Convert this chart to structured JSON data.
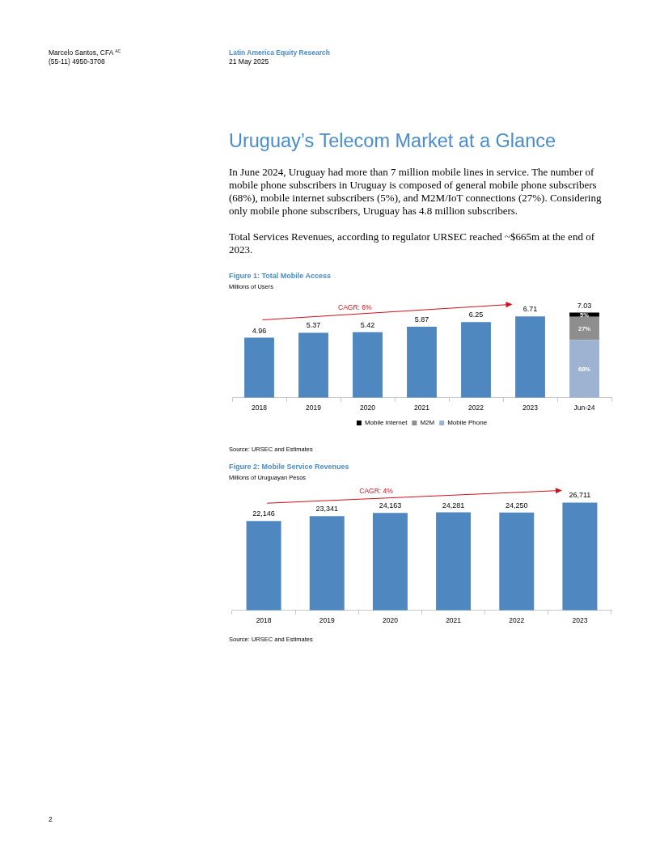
{
  "chart_data": [
    {
      "type": "bar",
      "title": "Figure 1: Total Mobile Access",
      "subtitle": "Millions of Users",
      "categories": [
        "2018",
        "2019",
        "2020",
        "2021",
        "2022",
        "2023",
        "Jun-24"
      ],
      "stacked": true,
      "series": [
        {
          "color": "#4f88c0",
          "values": [
            4.96,
            5.37,
            5.42,
            5.87,
            6.25,
            6.71,
            null
          ],
          "value_labels": [
            "4.96",
            "5.37",
            "5.42",
            "5.87",
            "6.25",
            "6.71",
            null
          ]
        },
        {
          "name": "Mobile Phone",
          "color": "#9db3d1",
          "values": [
            null,
            null,
            null,
            null,
            null,
            null,
            4.78
          ]
        },
        {
          "name": "M2M",
          "color": "#8e8e8e",
          "values": [
            null,
            null,
            null,
            null,
            null,
            null,
            1.9
          ]
        },
        {
          "name": "Mobile internet",
          "color": "#000000",
          "values": [
            null,
            null,
            null,
            null,
            null,
            null,
            0.35
          ]
        }
      ],
      "totals": [
        null,
        null,
        null,
        null,
        null,
        null,
        "7.03"
      ],
      "tick_labels": "x",
      "legend": "bottom",
      "annotations": [
        "CAGR: 6%",
        "Source: URSEC and Estimates",
        "68%",
        "27%",
        "5%",
        "Marcelo Santos, CFA $^{AC}$",
        "(55-11) 4950-3708",
        "Latin America Equity Research",
        "21 May 2025",
        "Uruguay’s Telecom Market at a Glance",
        "In June 2024, Uruguay had more than 7 million mobile lines in service. The number of mobile phone subscribers in Uruguay is composed of general mobile phone subscribers (68%), mobile internet subscribers (5%), and M2M/IoT connections (27%). Considering only mobile phone subscribers, Uruguay has 4.8 million subscribers.",
        "Total Services Revenues, according to regulator URSEC reached ~$665m at the end of 2023.",
        "2"
      ]
    },
    {
      "type": "bar",
      "title": "Figure 2: Mobile Service Revenues",
      "subtitle": "Millions of Uruguayan Pesos",
      "categories": [
        "2018",
        "2019",
        "2020",
        "2021",
        "2022",
        "2023"
      ],
      "values": [
        22146,
        23341,
        24163,
        24281,
        24250,
        26711
      ],
      "value_labels": [
        "22,146",
        "23,341",
        "24,163",
        "24,281",
        "24,250",
        "26,711"
      ],
      "color": "#4f88c0",
      "tick_labels": "x",
      "annotations": [
        "CAGR: 4%",
        "Source: URSEC and Estimates"
      ]
    }
  ]
}
